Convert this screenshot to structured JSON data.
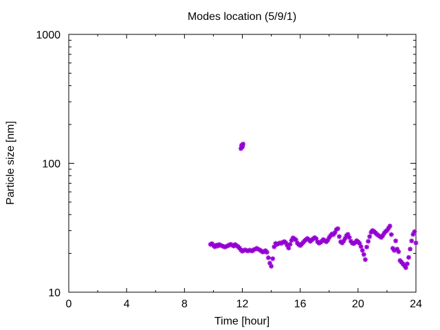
{
  "chart_data": {
    "type": "scatter",
    "title": "Modes location (5/9/1)",
    "xlabel": "Time [hour]",
    "ylabel": "Particle size [nm]",
    "xlim": [
      0,
      24
    ],
    "ylim": [
      10,
      1000
    ],
    "yscale": "log",
    "x_ticks": [
      0,
      4,
      8,
      12,
      16,
      20,
      24
    ],
    "y_ticks": [
      10,
      100,
      1000
    ],
    "grid": false,
    "marker": "asterisk",
    "colors": {
      "series": "#9400d3",
      "axis": "#000000"
    },
    "series": [
      {
        "points": [
          [
            9.8,
            23.5
          ],
          [
            9.9,
            23.8
          ],
          [
            10.0,
            23.0
          ],
          [
            10.1,
            22.5
          ],
          [
            10.2,
            23.2
          ],
          [
            10.3,
            22.8
          ],
          [
            10.4,
            23.4
          ],
          [
            10.5,
            23.1
          ],
          [
            10.6,
            22.9
          ],
          [
            10.7,
            22.6
          ],
          [
            10.8,
            22.4
          ],
          [
            10.9,
            22.7
          ],
          [
            11.0,
            22.9
          ],
          [
            11.1,
            23.3
          ],
          [
            11.2,
            23.5
          ],
          [
            11.3,
            23.1
          ],
          [
            11.4,
            22.8
          ],
          [
            11.5,
            23.4
          ],
          [
            11.6,
            23.0
          ],
          [
            11.7,
            22.6
          ],
          [
            11.8,
            22.0
          ],
          [
            11.9,
            21.3
          ],
          [
            12.0,
            20.8
          ],
          [
            12.1,
            21.1
          ],
          [
            12.2,
            21.3
          ],
          [
            12.3,
            21.0
          ],
          [
            12.4,
            20.9
          ],
          [
            12.5,
            21.2
          ],
          [
            12.6,
            21.0
          ],
          [
            12.7,
            20.9
          ],
          [
            12.8,
            21.4
          ],
          [
            12.9,
            21.6
          ],
          [
            13.0,
            21.9
          ],
          [
            13.1,
            21.5
          ],
          [
            13.2,
            21.3
          ],
          [
            13.3,
            20.9
          ],
          [
            13.4,
            20.5
          ],
          [
            13.5,
            20.6
          ],
          [
            13.6,
            21.0
          ],
          [
            13.7,
            20.4
          ],
          [
            13.8,
            18.5
          ],
          [
            13.9,
            16.8
          ],
          [
            14.0,
            15.9
          ],
          [
            14.1,
            18.2
          ],
          [
            14.2,
            22.5
          ],
          [
            14.3,
            23.9
          ],
          [
            14.4,
            23.5
          ],
          [
            14.5,
            23.8
          ],
          [
            14.6,
            24.1
          ],
          [
            14.7,
            23.9
          ],
          [
            14.8,
            24.4
          ],
          [
            14.9,
            24.7
          ],
          [
            15.0,
            24.2
          ],
          [
            15.1,
            23.1
          ],
          [
            15.2,
            22.0
          ],
          [
            15.3,
            23.5
          ],
          [
            15.4,
            25.2
          ],
          [
            15.5,
            26.4
          ],
          [
            15.6,
            26.0
          ],
          [
            15.7,
            25.5
          ],
          [
            15.8,
            24.1
          ],
          [
            15.9,
            23.4
          ],
          [
            16.0,
            23.0
          ],
          [
            16.1,
            23.6
          ],
          [
            16.2,
            24.3
          ],
          [
            16.3,
            25.0
          ],
          [
            16.4,
            25.6
          ],
          [
            16.5,
            26.1
          ],
          [
            16.6,
            25.5
          ],
          [
            16.7,
            24.8
          ],
          [
            16.8,
            25.4
          ],
          [
            16.9,
            26.0
          ],
          [
            17.0,
            26.5
          ],
          [
            17.1,
            26.0
          ],
          [
            17.2,
            24.6
          ],
          [
            17.3,
            24.0
          ],
          [
            17.4,
            24.3
          ],
          [
            17.5,
            24.9
          ],
          [
            17.6,
            25.6
          ],
          [
            17.7,
            25.1
          ],
          [
            17.8,
            24.6
          ],
          [
            17.9,
            25.3
          ],
          [
            18.0,
            26.5
          ],
          [
            18.1,
            27.5
          ],
          [
            18.2,
            28.3
          ],
          [
            18.3,
            28.0
          ],
          [
            18.4,
            29.0
          ],
          [
            18.5,
            30.6
          ],
          [
            18.6,
            31.1
          ],
          [
            18.7,
            27.0
          ],
          [
            18.8,
            24.6
          ],
          [
            18.9,
            24.1
          ],
          [
            19.0,
            24.9
          ],
          [
            19.1,
            26.1
          ],
          [
            19.2,
            27.5
          ],
          [
            19.3,
            28.1
          ],
          [
            19.4,
            26.6
          ],
          [
            19.5,
            24.9
          ],
          [
            19.6,
            24.0
          ],
          [
            19.7,
            23.8
          ],
          [
            19.8,
            24.3
          ],
          [
            19.9,
            25.1
          ],
          [
            20.0,
            24.6
          ],
          [
            20.1,
            23.9
          ],
          [
            20.2,
            22.6
          ],
          [
            20.3,
            21.1
          ],
          [
            20.4,
            19.6
          ],
          [
            20.5,
            17.9
          ],
          [
            20.6,
            22.4
          ],
          [
            20.7,
            24.8
          ],
          [
            20.8,
            27.0
          ],
          [
            20.9,
            29.2
          ],
          [
            21.0,
            30.1
          ],
          [
            21.1,
            29.6
          ],
          [
            21.2,
            28.9
          ],
          [
            21.3,
            28.1
          ],
          [
            21.4,
            27.6
          ],
          [
            21.5,
            27.1
          ],
          [
            21.6,
            26.6
          ],
          [
            21.7,
            27.4
          ],
          [
            21.8,
            28.6
          ],
          [
            21.9,
            29.6
          ],
          [
            22.0,
            30.1
          ],
          [
            22.1,
            31.3
          ],
          [
            22.2,
            32.6
          ],
          [
            22.3,
            28.0
          ],
          [
            22.4,
            21.9
          ],
          [
            22.5,
            21.1
          ],
          [
            22.6,
            25.0
          ],
          [
            22.7,
            21.6
          ],
          [
            22.8,
            20.6
          ],
          [
            22.9,
            17.6
          ],
          [
            23.0,
            17.1
          ],
          [
            23.1,
            16.6
          ],
          [
            23.2,
            16.1
          ],
          [
            23.3,
            15.5
          ],
          [
            23.4,
            16.6
          ],
          [
            23.5,
            18.6
          ],
          [
            23.6,
            21.6
          ],
          [
            23.7,
            25.0
          ],
          [
            23.8,
            28.1
          ],
          [
            23.9,
            29.5
          ],
          [
            24.0,
            24.1
          ],
          [
            11.9,
            130.0
          ],
          [
            11.95,
            138.0
          ],
          [
            12.0,
            134.0
          ],
          [
            12.05,
            141.0
          ],
          [
            11.98,
            136.0
          ]
        ]
      }
    ]
  }
}
